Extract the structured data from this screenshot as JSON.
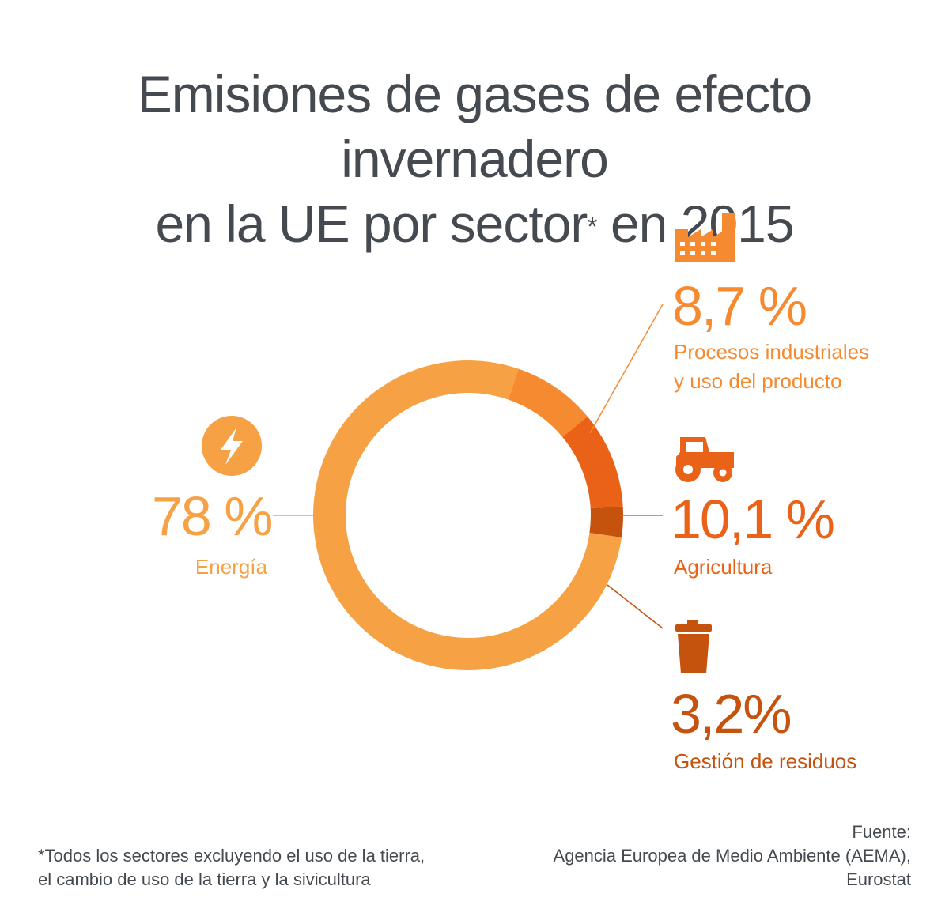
{
  "title": {
    "line1": "Emisiones de gases de efecto invernadero",
    "line2": "en la UE por sector",
    "asterisk": "*",
    "line2_end": " en 2015"
  },
  "chart_data": {
    "type": "pie",
    "subtype": "donut",
    "slices": [
      {
        "label": "Energía",
        "value": 78,
        "display": "78 %",
        "color": "#f7a145",
        "icon": "lightning-icon"
      },
      {
        "label": "Procesos industriales y uso del producto",
        "label_lines": [
          "Procesos industriales",
          "y uso del producto"
        ],
        "value": 8.7,
        "display": "8,7 %",
        "color": "#f58a30",
        "icon": "factory-icon"
      },
      {
        "label": "Agricultura",
        "value": 10.1,
        "display": "10,1 %",
        "color": "#ea6218",
        "icon": "tractor-icon"
      },
      {
        "label": "Gestión de residuos",
        "value": 3.2,
        "display": "3,2%",
        "color": "#c5520d",
        "icon": "trash-can-icon"
      }
    ]
  },
  "footnote": {
    "line1": "*Todos los sectores excluyendo el uso de la tierra,",
    "line2": "el cambio de uso de la tierra y la sivicultura"
  },
  "source": {
    "line1": "Fuente:",
    "line2": "Agencia Europea de Medio Ambiente (AEMA),",
    "line3": "Eurostat"
  },
  "colors": {
    "title_text": "#444a50",
    "energy_text": "#f7a145",
    "industry_text": "#f58a30",
    "agriculture_text": "#ea6218",
    "waste_text": "#c5520d"
  }
}
